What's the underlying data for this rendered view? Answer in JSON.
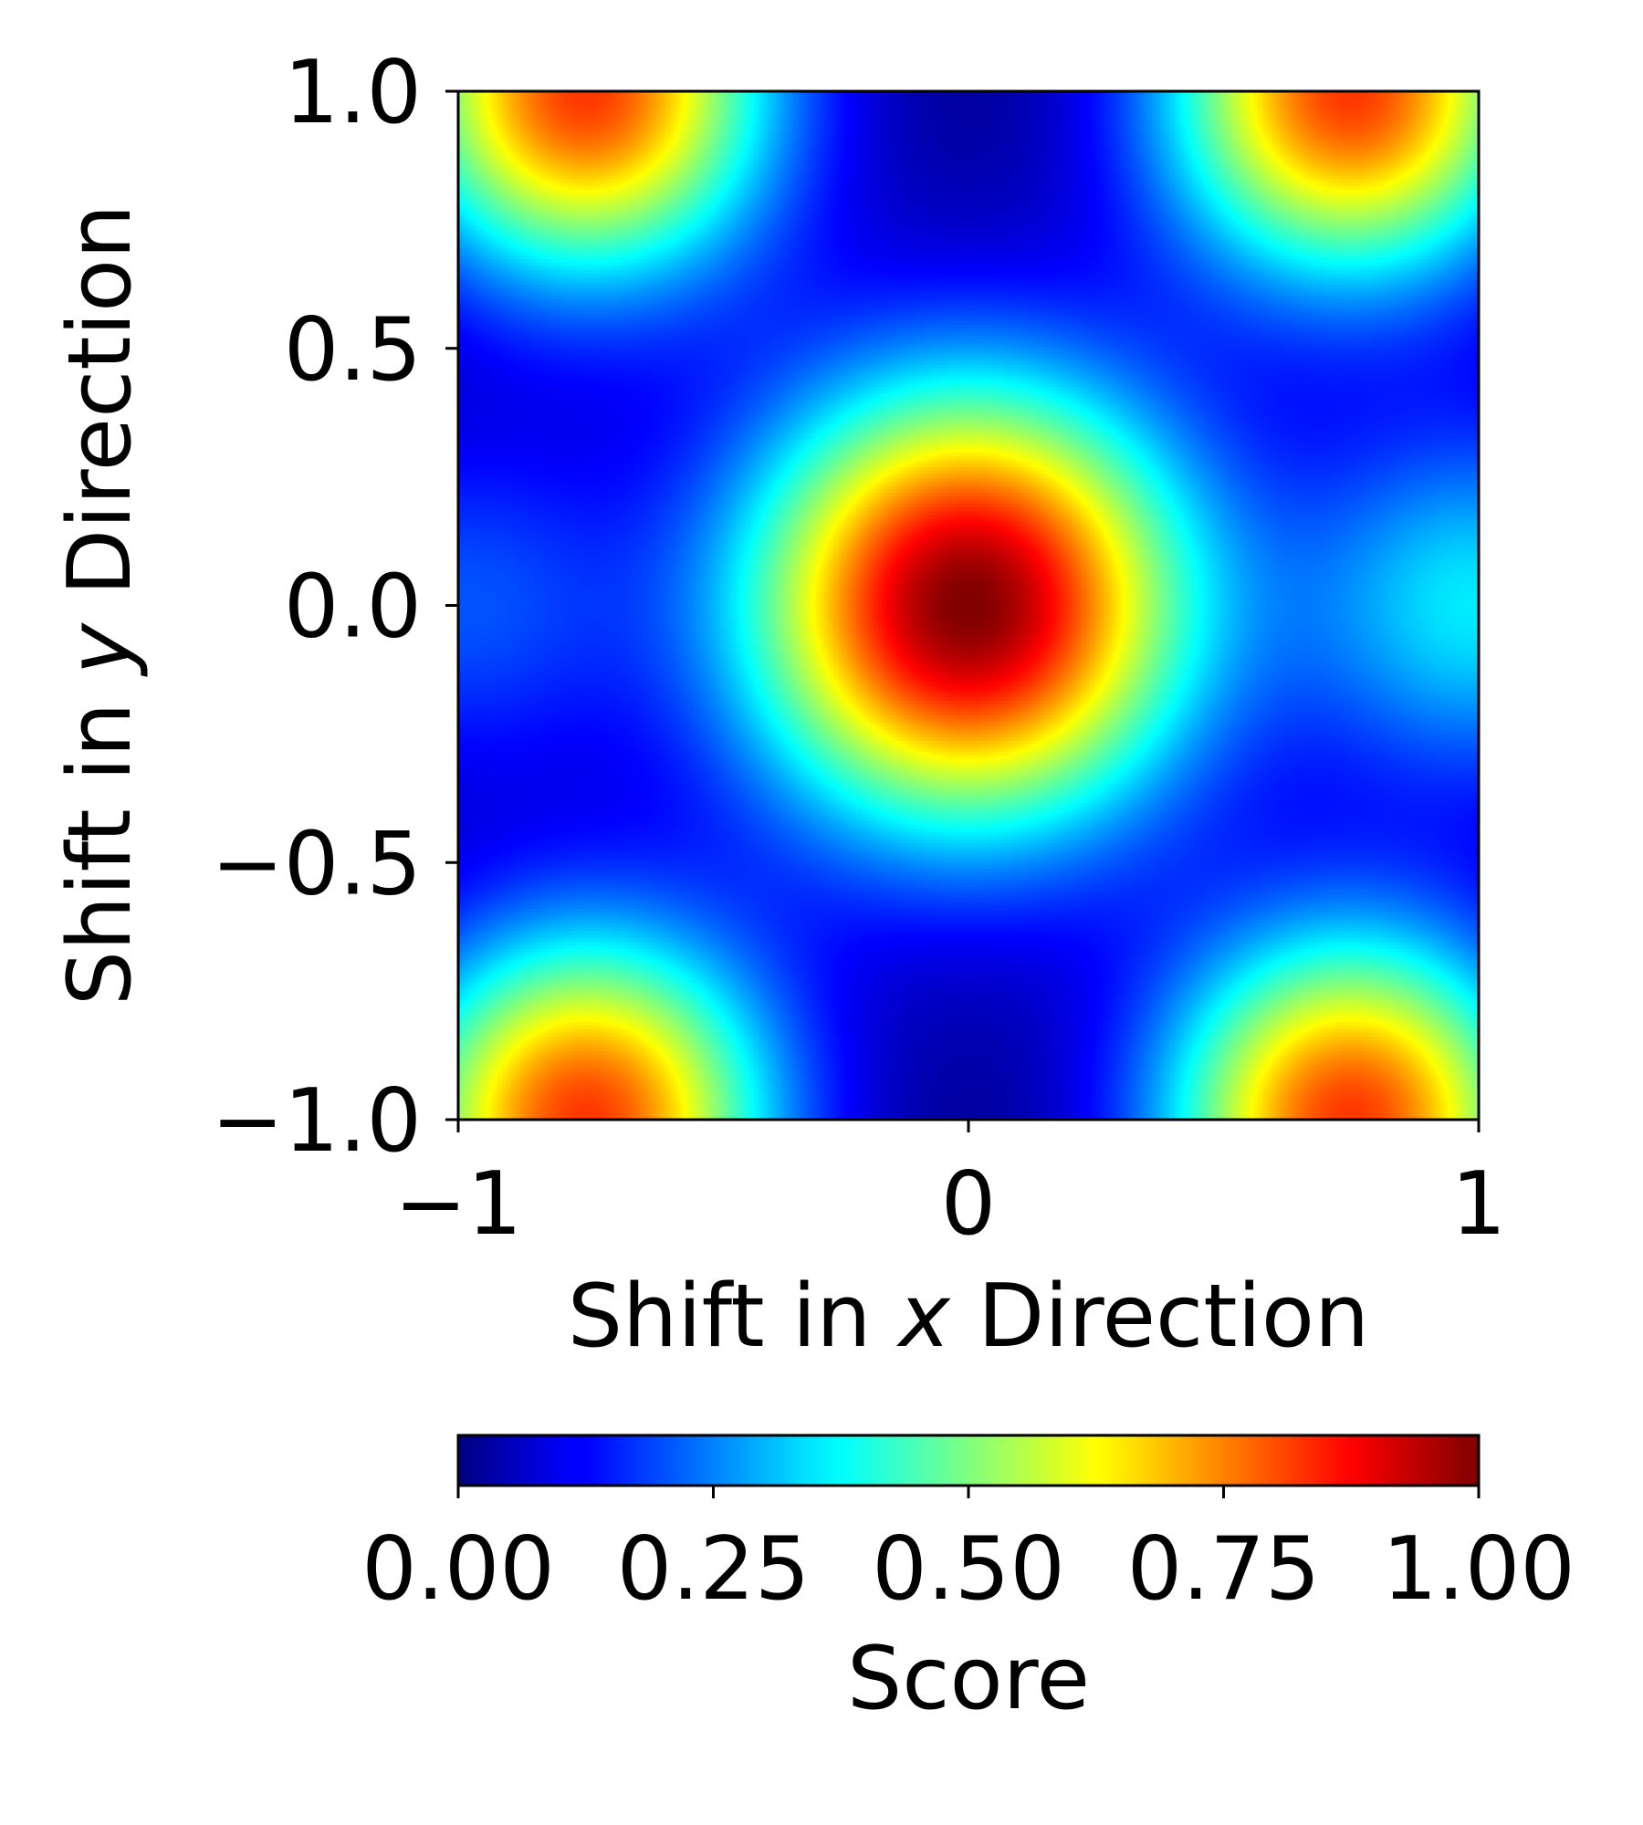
{
  "chart_data": {
    "type": "heatmap",
    "title": "",
    "xlabel": {
      "before": "Shift in ",
      "var": "x",
      "after": " Direction"
    },
    "ylabel": {
      "before": "Shift in ",
      "var": "y",
      "after": " Direction"
    },
    "xlim": [
      -1,
      1
    ],
    "ylim": [
      -1,
      1
    ],
    "x_ticks": [
      -1,
      0,
      1
    ],
    "x_tick_labels": [
      "−1",
      "0",
      "1"
    ],
    "y_ticks": [
      -1.0,
      -0.5,
      0.0,
      0.5,
      1.0
    ],
    "y_tick_labels": [
      "−1.0",
      "−0.5",
      "0.0",
      "0.5",
      "1.0"
    ],
    "grid": false,
    "colormap": "jet",
    "colorbar": {
      "label": "Score",
      "orientation": "horizontal",
      "placement": "bottom",
      "range": [
        0,
        1
      ],
      "ticks": [
        0.0,
        0.25,
        0.5,
        0.75,
        1.0
      ],
      "tick_labels": [
        "0.00",
        "0.25",
        "0.50",
        "0.75",
        "1.00"
      ]
    },
    "peaks": [
      {
        "x": 0.0,
        "y": 0.0,
        "score": 1.0
      },
      {
        "x": -0.75,
        "y": 1.0,
        "score": 0.82
      },
      {
        "x": 0.75,
        "y": 1.0,
        "score": 0.82
      },
      {
        "x": -0.75,
        "y": -1.0,
        "score": 0.82
      },
      {
        "x": 0.75,
        "y": -1.0,
        "score": 0.82
      },
      {
        "x": 1.0,
        "y": 0.0,
        "score": 0.35
      },
      {
        "x": -1.0,
        "y": 0.0,
        "score": 0.2
      }
    ],
    "minima": [
      {
        "x": 0.0,
        "y": 0.8,
        "score": 0.0
      },
      {
        "x": 0.0,
        "y": -0.8,
        "score": 0.0
      },
      {
        "x": -0.75,
        "y": 0.45,
        "score": 0.0
      },
      {
        "x": 0.75,
        "y": 0.45,
        "score": 0.0
      },
      {
        "x": -0.75,
        "y": -0.45,
        "score": 0.0
      },
      {
        "x": 0.75,
        "y": -0.45,
        "score": 0.0
      }
    ]
  }
}
